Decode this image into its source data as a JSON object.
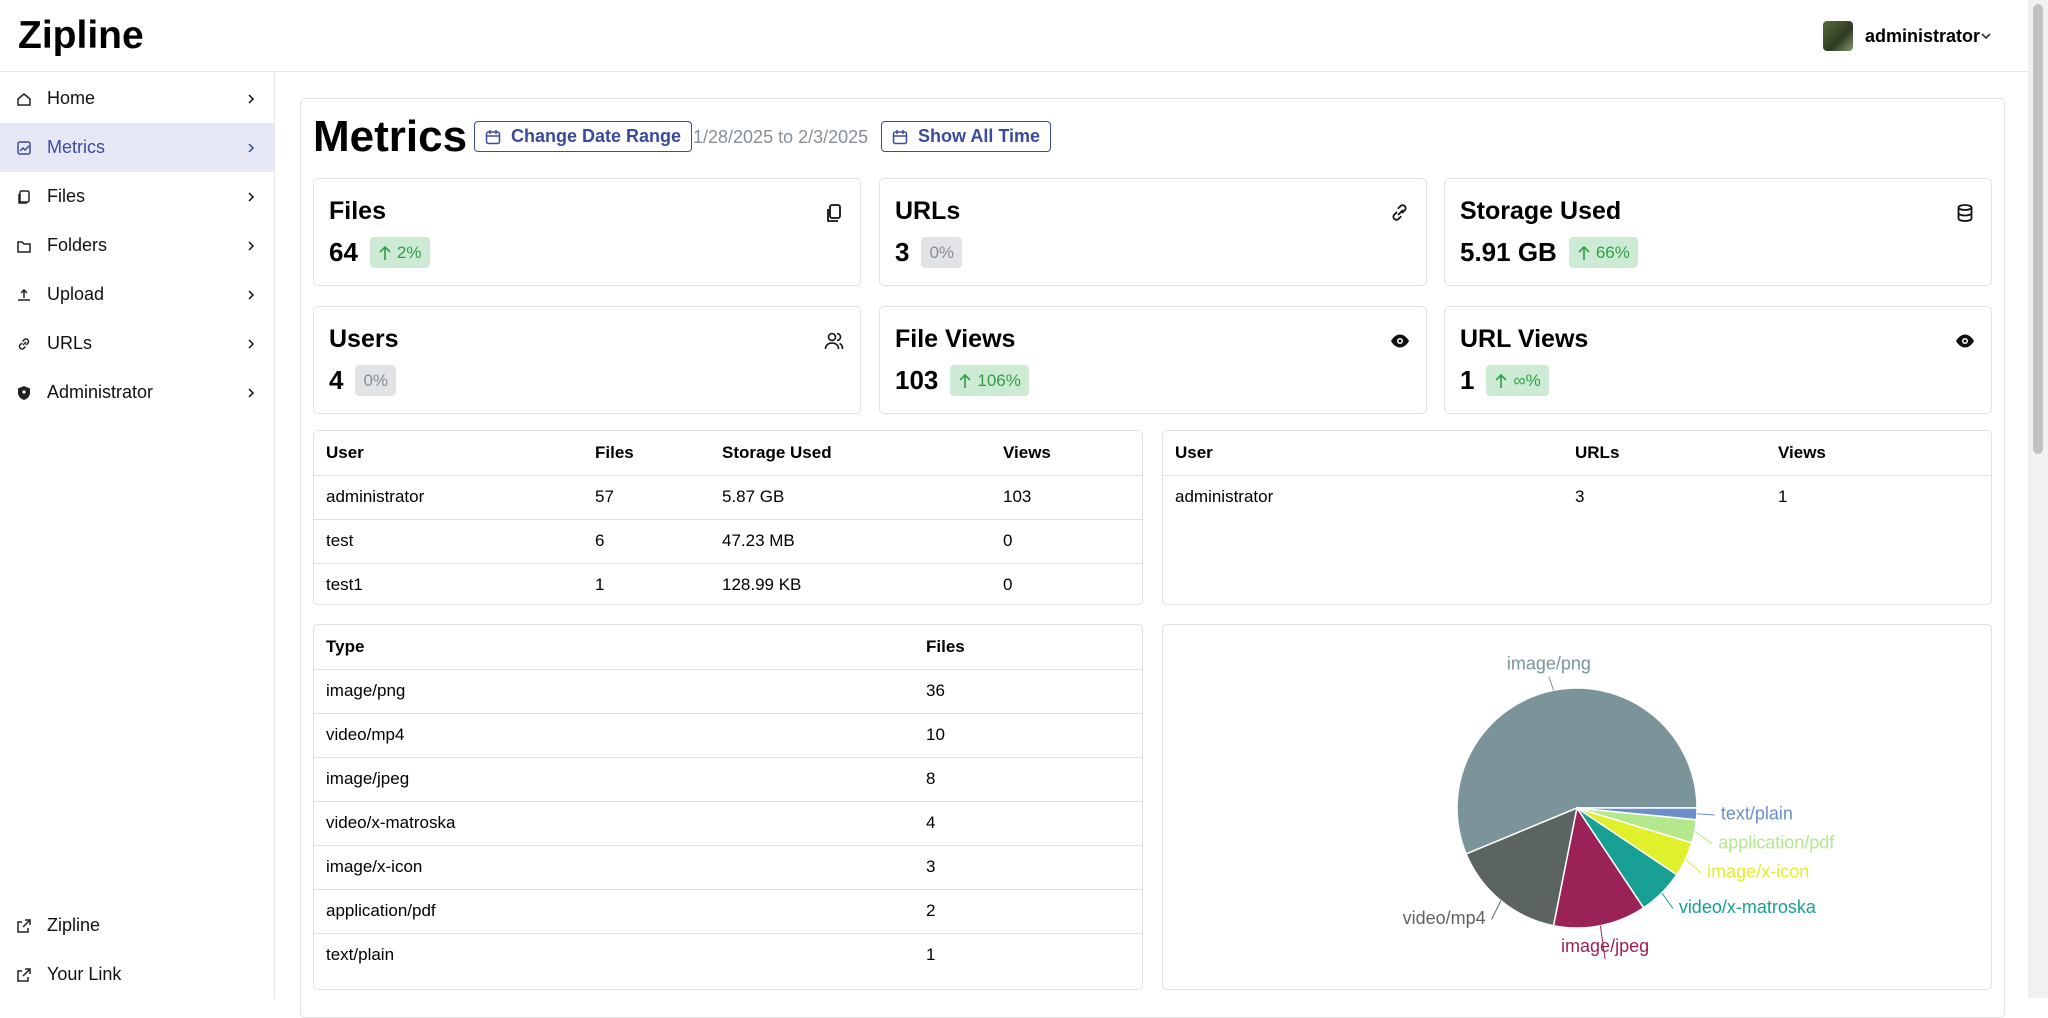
{
  "header": {
    "brand": "Zipline",
    "user": "administrator"
  },
  "sidebar": {
    "items": [
      "Home",
      "Metrics",
      "Files",
      "Folders",
      "Upload",
      "URLs",
      "Administrator"
    ],
    "active": 1,
    "footer_links": [
      "Zipline",
      "Your Link"
    ]
  },
  "metrics": {
    "title": "Metrics",
    "change_date_range": "Change Date Range",
    "date_range": "1/28/2025 to 2/3/2025",
    "show_all_time": "Show All Time",
    "stats": [
      {
        "label": "Files",
        "value": 64,
        "change": "2%",
        "trend": "up"
      },
      {
        "label": "URLs",
        "value": 3,
        "change": "0%",
        "trend": "flat"
      },
      {
        "label": "Storage Used",
        "value": "5.91 GB",
        "change": "66%",
        "trend": "up"
      },
      {
        "label": "Users",
        "value": 4,
        "change": "0%",
        "trend": "flat"
      },
      {
        "label": "File Views",
        "value": 103,
        "change": "106%",
        "trend": "up"
      },
      {
        "label": "URL Views",
        "value": 1,
        "change": "∞%",
        "trend": "up"
      }
    ]
  },
  "user_files_table": {
    "columns": [
      "User",
      "Files",
      "Storage Used",
      "Views"
    ],
    "rows": [
      [
        "administrator",
        57,
        "5.87 GB",
        103
      ],
      [
        "test",
        6,
        "47.23 MB",
        0
      ],
      [
        "test1",
        1,
        "128.99 KB",
        0
      ]
    ]
  },
  "user_urls_table": {
    "columns": [
      "User",
      "URLs",
      "Views"
    ],
    "rows": [
      [
        "administrator",
        3,
        1
      ]
    ]
  },
  "types_table": {
    "columns": [
      "Type",
      "Files"
    ],
    "rows": [
      [
        "image/png",
        36
      ],
      [
        "video/mp4",
        10
      ],
      [
        "image/jpeg",
        8
      ],
      [
        "video/x-matroska",
        4
      ],
      [
        "image/x-icon",
        3
      ],
      [
        "application/pdf",
        2
      ],
      [
        "text/plain",
        1
      ]
    ]
  },
  "types_chart": {
    "type": "pie",
    "colors": [
      "#7a9499",
      "#5c6462",
      "#9b2257",
      "#17a093",
      "#e0f02a",
      "#b4e88c",
      "#6b8fc8"
    ]
  }
}
